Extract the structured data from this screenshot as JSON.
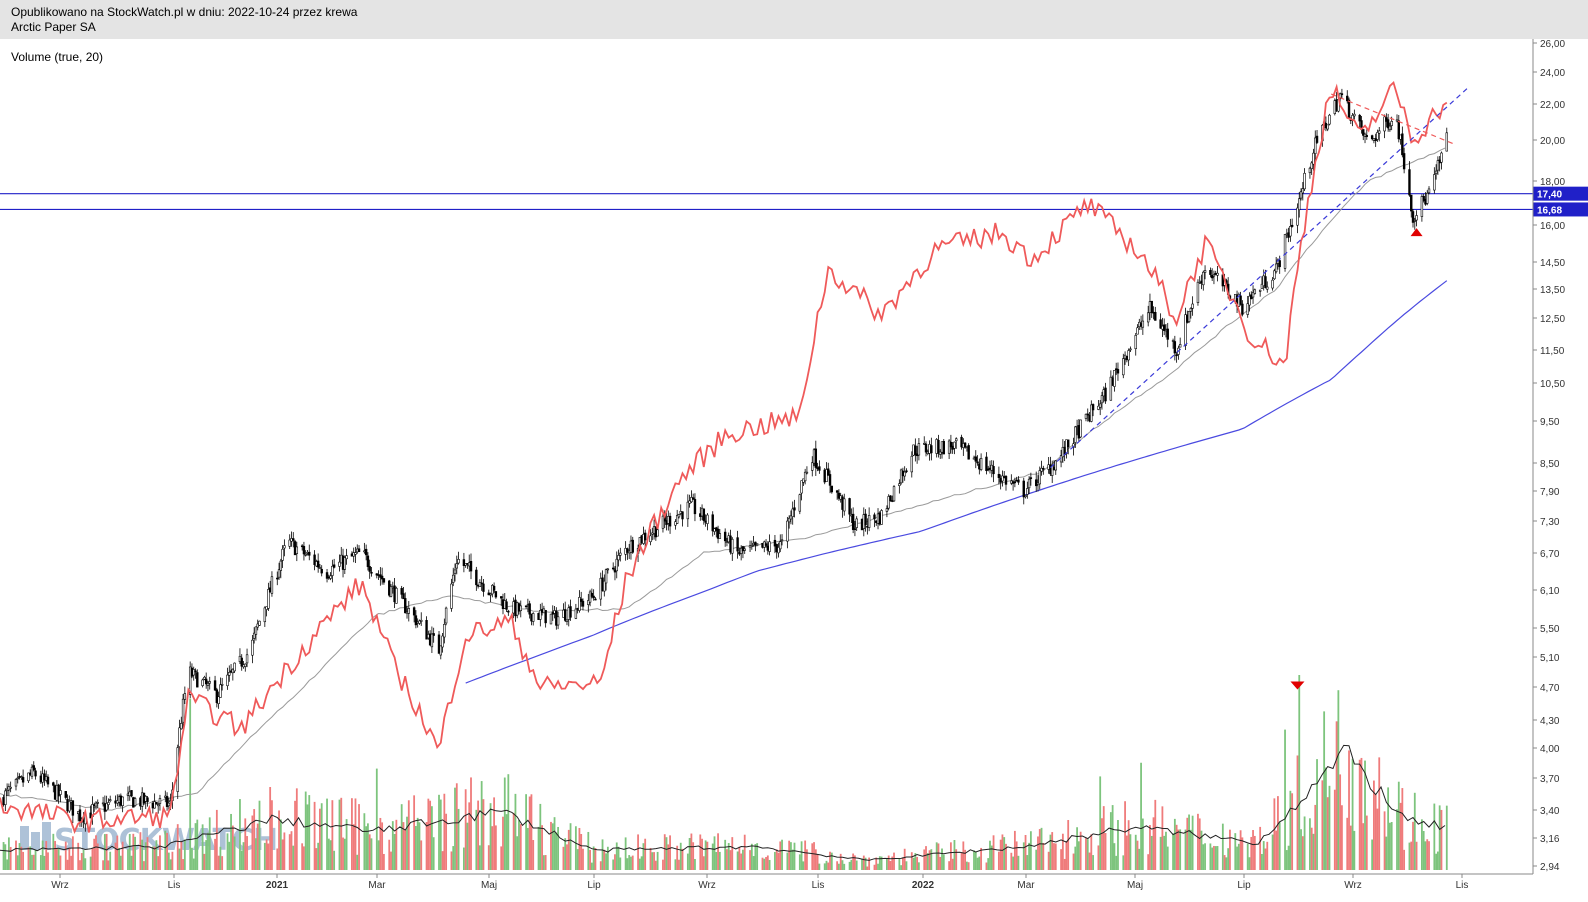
{
  "header": {
    "line1": "Opublikowano na StockWatch.pl w dniu: 2022-10-24 przez krewa",
    "line2": "Arctic Paper SA"
  },
  "indicator_label": "Volume (true, 20)",
  "watermark": "STOCKWATCH",
  "colors": {
    "price_candles": "#000000",
    "relative_line": "#ef5a5a",
    "sma_long": "#4a4ae0",
    "sma_short": "#9a9a9a",
    "levels": "#2020c8",
    "vol_up": "#7dc47d",
    "vol_down": "#ef7b7b",
    "vol_avg": "#222222"
  },
  "chart_data": {
    "type": "candlestick",
    "title": "",
    "y_scale": "log",
    "y_ticks": [
      "26,00",
      "24,00",
      "22,00",
      "20,00",
      "18,00",
      "16,00",
      "14,50",
      "13,50",
      "12,50",
      "11,50",
      "10,50",
      "9,50",
      "8,50",
      "7,90",
      "7,30",
      "6,70",
      "6,10",
      "5,50",
      "5,10",
      "4,70",
      "4,30",
      "4,00",
      "3,70",
      "3,40",
      "3,16",
      "2,94"
    ],
    "x_ticks": [
      {
        "label": "Wrz",
        "bold": false
      },
      {
        "label": "Lis",
        "bold": false
      },
      {
        "label": "2021",
        "bold": true
      },
      {
        "label": "Mar",
        "bold": false
      },
      {
        "label": "Maj",
        "bold": false
      },
      {
        "label": "Lip",
        "bold": false
      },
      {
        "label": "Wrz",
        "bold": false
      },
      {
        "label": "Lis",
        "bold": false
      },
      {
        "label": "2022",
        "bold": true
      },
      {
        "label": "Mar",
        "bold": false
      },
      {
        "label": "Maj",
        "bold": false
      },
      {
        "label": "Lip",
        "bold": false
      },
      {
        "label": "Wrz",
        "bold": false
      },
      {
        "label": "Lis",
        "bold": false
      }
    ],
    "horizontal_levels": [
      {
        "value": 17.4,
        "label": "17,40"
      },
      {
        "value": 16.68,
        "label": "16,68"
      }
    ],
    "price_keypoints": [
      {
        "date": "2020-08-01",
        "close": 3.5
      },
      {
        "date": "2020-08-20",
        "close": 3.75
      },
      {
        "date": "2020-09-15",
        "close": 3.35
      },
      {
        "date": "2020-10-10",
        "close": 3.5
      },
      {
        "date": "2020-11-05",
        "close": 3.45
      },
      {
        "date": "2020-11-15",
        "close": 4.9
      },
      {
        "date": "2020-12-01",
        "close": 4.6
      },
      {
        "date": "2020-12-20",
        "close": 5.2
      },
      {
        "date": "2021-01-10",
        "close": 6.9
      },
      {
        "date": "2021-02-01",
        "close": 6.4
      },
      {
        "date": "2021-02-20",
        "close": 6.7
      },
      {
        "date": "2021-03-15",
        "close": 5.9
      },
      {
        "date": "2021-04-05",
        "close": 5.2
      },
      {
        "date": "2021-04-15",
        "close": 6.6
      },
      {
        "date": "2021-05-15",
        "close": 5.8
      },
      {
        "date": "2021-06-10",
        "close": 5.65
      },
      {
        "date": "2021-07-01",
        "close": 6.0
      },
      {
        "date": "2021-07-20",
        "close": 6.8
      },
      {
        "date": "2021-08-25",
        "close": 7.6
      },
      {
        "date": "2021-09-20",
        "close": 6.7
      },
      {
        "date": "2021-10-15",
        "close": 6.85
      },
      {
        "date": "2021-11-01",
        "close": 8.7
      },
      {
        "date": "2021-11-25",
        "close": 7.2
      },
      {
        "date": "2021-12-10",
        "close": 7.4
      },
      {
        "date": "2021-12-28",
        "close": 8.8
      },
      {
        "date": "2022-01-20",
        "close": 8.9
      },
      {
        "date": "2022-02-15",
        "close": 8.2
      },
      {
        "date": "2022-02-28",
        "close": 7.9
      },
      {
        "date": "2022-03-20",
        "close": 8.6
      },
      {
        "date": "2022-04-15",
        "close": 10.2
      },
      {
        "date": "2022-05-10",
        "close": 12.8
      },
      {
        "date": "2022-05-25",
        "close": 11.5
      },
      {
        "date": "2022-06-10",
        "close": 14.3
      },
      {
        "date": "2022-07-01",
        "close": 12.9
      },
      {
        "date": "2022-07-20",
        "close": 14.2
      },
      {
        "date": "2022-08-01",
        "close": 16.8
      },
      {
        "date": "2022-08-10",
        "close": 19.5
      },
      {
        "date": "2022-08-25",
        "close": 22.5
      },
      {
        "date": "2022-09-10",
        "close": 19.8
      },
      {
        "date": "2022-09-25",
        "close": 21.5
      },
      {
        "date": "2022-10-05",
        "close": 16.4
      },
      {
        "date": "2022-10-15",
        "close": 17.5
      },
      {
        "date": "2022-10-24",
        "close": 20.0
      }
    ],
    "relative_line_keypoints": [
      {
        "date": "2020-08-01",
        "y": 3.45
      },
      {
        "date": "2020-09-15",
        "y": 3.3
      },
      {
        "date": "2020-11-05",
        "y": 3.35
      },
      {
        "date": "2020-11-15",
        "y": 4.55
      },
      {
        "date": "2020-12-15",
        "y": 4.2
      },
      {
        "date": "2021-01-15",
        "y": 5.1
      },
      {
        "date": "2021-02-20",
        "y": 6.2
      },
      {
        "date": "2021-03-10",
        "y": 5.0
      },
      {
        "date": "2021-04-05",
        "y": 3.95
      },
      {
        "date": "2021-04-20",
        "y": 5.4
      },
      {
        "date": "2021-05-15",
        "y": 5.6
      },
      {
        "date": "2021-06-01",
        "y": 4.7
      },
      {
        "date": "2021-07-05",
        "y": 4.75
      },
      {
        "date": "2021-07-20",
        "y": 6.3
      },
      {
        "date": "2021-08-20",
        "y": 8.2
      },
      {
        "date": "2021-09-15",
        "y": 9.2
      },
      {
        "date": "2021-10-25",
        "y": 9.6
      },
      {
        "date": "2021-11-10",
        "y": 14.2
      },
      {
        "date": "2021-12-10",
        "y": 12.6
      },
      {
        "date": "2022-01-10",
        "y": 15.0
      },
      {
        "date": "2022-02-15",
        "y": 15.7
      },
      {
        "date": "2022-03-05",
        "y": 14.6
      },
      {
        "date": "2022-04-05",
        "y": 16.9
      },
      {
        "date": "2022-05-05",
        "y": 14.8
      },
      {
        "date": "2022-05-25",
        "y": 12.5
      },
      {
        "date": "2022-06-10",
        "y": 15.2
      },
      {
        "date": "2022-07-05",
        "y": 12.0
      },
      {
        "date": "2022-07-25",
        "y": 11.0
      },
      {
        "date": "2022-08-20",
        "y": 23.0
      },
      {
        "date": "2022-09-05",
        "y": 20.0
      },
      {
        "date": "2022-09-25",
        "y": 23.0
      },
      {
        "date": "2022-10-05",
        "y": 20.0
      },
      {
        "date": "2022-10-24",
        "y": 22.2
      }
    ],
    "sma_long_keypoints": [
      {
        "date": "2021-04-20",
        "y": 4.75
      },
      {
        "date": "2021-07-01",
        "y": 5.4
      },
      {
        "date": "2021-10-01",
        "y": 6.4
      },
      {
        "date": "2022-01-01",
        "y": 7.1
      },
      {
        "date": "2022-04-01",
        "y": 8.2
      },
      {
        "date": "2022-07-01",
        "y": 9.3
      },
      {
        "date": "2022-08-20",
        "y": 10.6
      },
      {
        "date": "2022-10-24",
        "y": 13.8
      }
    ],
    "sma_short_keypoints": [
      {
        "date": "2020-08-01",
        "y": 3.55
      },
      {
        "date": "2020-10-01",
        "y": 3.4
      },
      {
        "date": "2020-11-20",
        "y": 3.55
      },
      {
        "date": "2021-01-15",
        "y": 4.6
      },
      {
        "date": "2021-03-01",
        "y": 5.7
      },
      {
        "date": "2021-04-10",
        "y": 6.0
      },
      {
        "date": "2021-06-01",
        "y": 5.75
      },
      {
        "date": "2021-07-20",
        "y": 5.8
      },
      {
        "date": "2021-09-01",
        "y": 6.7
      },
      {
        "date": "2021-11-01",
        "y": 7.0
      },
      {
        "date": "2022-01-10",
        "y": 7.7
      },
      {
        "date": "2022-03-10",
        "y": 8.3
      },
      {
        "date": "2022-05-20",
        "y": 10.7
      },
      {
        "date": "2022-07-20",
        "y": 13.5
      },
      {
        "date": "2022-09-10",
        "y": 18.0
      },
      {
        "date": "2022-10-24",
        "y": 19.6
      }
    ],
    "trendlines": [
      {
        "style": "dashed",
        "color": "#3a3ad8",
        "from": {
          "date": "2022-03-15",
          "y": 8.4
        },
        "to": {
          "date": "2022-11-05",
          "y": 23.0
        }
      },
      {
        "style": "dashed",
        "color": "#ef5a5a",
        "from": {
          "date": "2022-08-20",
          "y": 22.6
        },
        "to": {
          "date": "2022-10-28",
          "y": 19.8
        }
      }
    ],
    "markers": [
      {
        "type": "triangle-up",
        "color": "#e00000",
        "date": "2022-10-07",
        "y": 15.7
      },
      {
        "type": "triangle-down",
        "color": "#e00000",
        "date": "2022-08-01",
        "y": 4.72
      }
    ],
    "volume": {
      "label": "Volume (true, 20)",
      "spikes": [
        {
          "date": "2020-11-16",
          "level": 0.88
        },
        {
          "date": "2021-03-01",
          "level": 0.52
        },
        {
          "date": "2021-05-02",
          "level": 0.82
        },
        {
          "date": "2022-04-12",
          "level": 0.48
        },
        {
          "date": "2022-05-05",
          "level": 0.55
        },
        {
          "date": "2022-07-25",
          "level": 0.72
        },
        {
          "date": "2022-08-02",
          "level": 1.0
        },
        {
          "date": "2022-09-25",
          "level": 0.6
        }
      ],
      "avg_keypoints": [
        {
          "date": "2020-08-01",
          "level": 0.1
        },
        {
          "date": "2020-11-01",
          "level": 0.12
        },
        {
          "date": "2021-01-01",
          "level": 0.26
        },
        {
          "date": "2021-03-01",
          "level": 0.2
        },
        {
          "date": "2021-05-10",
          "level": 0.3
        },
        {
          "date": "2021-07-01",
          "level": 0.1
        },
        {
          "date": "2021-10-01",
          "level": 0.12
        },
        {
          "date": "2021-12-01",
          "level": 0.05
        },
        {
          "date": "2022-03-01",
          "level": 0.12
        },
        {
          "date": "2022-05-01",
          "level": 0.22
        },
        {
          "date": "2022-07-10",
          "level": 0.14
        },
        {
          "date": "2022-08-28",
          "level": 0.6
        },
        {
          "date": "2022-10-01",
          "level": 0.25
        },
        {
          "date": "2022-10-24",
          "level": 0.22
        }
      ]
    }
  }
}
